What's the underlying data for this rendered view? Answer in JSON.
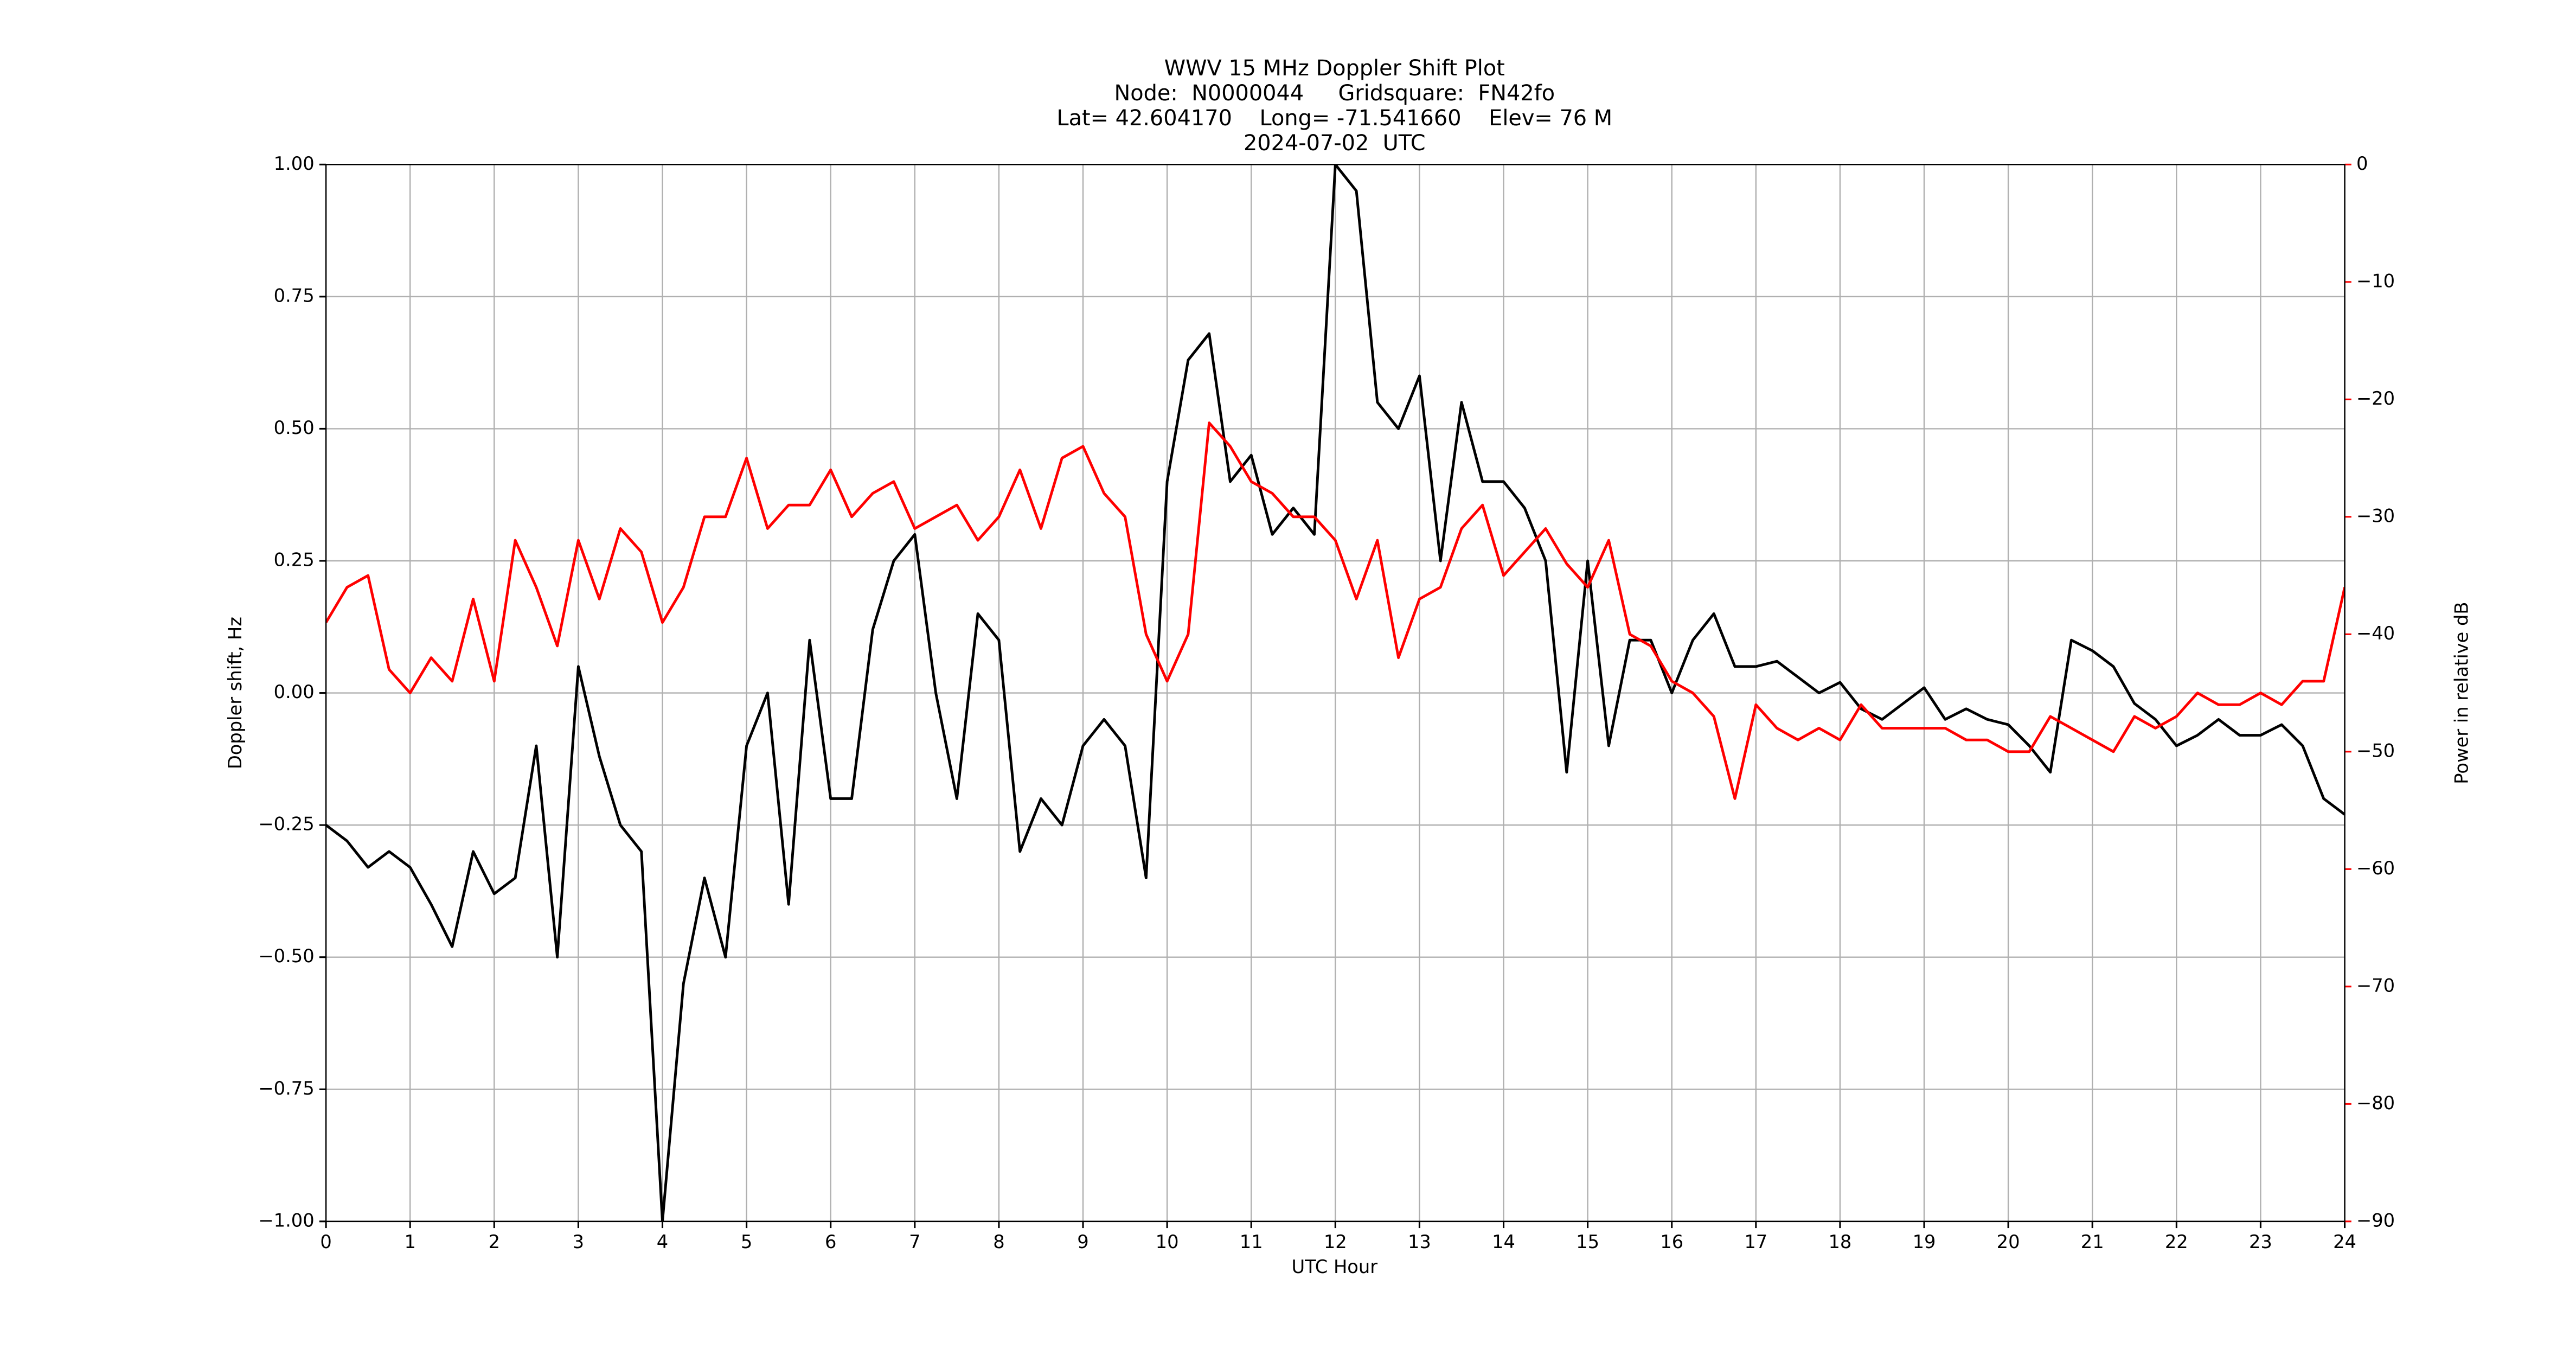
{
  "chart_data": {
    "type": "line",
    "title": "WWV 15 MHz Doppler Shift Plot",
    "subtitle": [
      "Node:  N0000044     Gridsquare:  FN42fo",
      "Lat= 42.604170    Long= -71.541660    Elev= 76 M",
      "2024-07-02  UTC"
    ],
    "x_label": "UTC Hour",
    "y_label": "Doppler shift, Hz",
    "y2_label": "Power in relative dB",
    "x": [
      0,
      0.25,
      0.5,
      0.75,
      1,
      1.25,
      1.5,
      1.75,
      2,
      2.25,
      2.5,
      2.75,
      3,
      3.25,
      3.5,
      3.75,
      4,
      4.25,
      4.5,
      4.75,
      5,
      5.25,
      5.5,
      5.75,
      6,
      6.25,
      6.5,
      6.75,
      7,
      7.25,
      7.5,
      7.75,
      8,
      8.25,
      8.5,
      8.75,
      9,
      9.25,
      9.5,
      9.75,
      10,
      10.25,
      10.5,
      10.75,
      11,
      11.25,
      11.5,
      11.75,
      12,
      12.25,
      12.5,
      12.75,
      13,
      13.25,
      13.5,
      13.75,
      14,
      14.25,
      14.5,
      14.75,
      15,
      15.25,
      15.5,
      15.75,
      16,
      16.25,
      16.5,
      16.75,
      17,
      17.25,
      17.5,
      17.75,
      18,
      18.25,
      18.5,
      18.75,
      19,
      19.25,
      19.5,
      19.75,
      20,
      20.25,
      20.5,
      20.75,
      21,
      21.25,
      21.5,
      21.75,
      22,
      22.25,
      22.5,
      22.75,
      23,
      23.25,
      23.5,
      23.75,
      24
    ],
    "series": [
      {
        "name": "Doppler shift",
        "color": "#000000",
        "axis": "y",
        "values": [
          -0.25,
          -0.28,
          -0.33,
          -0.3,
          -0.33,
          -0.4,
          -0.48,
          -0.3,
          -0.38,
          -0.35,
          -0.1,
          -0.5,
          0.05,
          -0.12,
          -0.25,
          -0.3,
          -1.0,
          -0.55,
          -0.35,
          -0.5,
          -0.1,
          0.0,
          -0.4,
          0.1,
          -0.2,
          -0.2,
          0.12,
          0.25,
          0.3,
          0.0,
          -0.2,
          0.15,
          0.1,
          -0.3,
          -0.2,
          -0.25,
          -0.1,
          -0.05,
          -0.1,
          -0.35,
          0.4,
          0.63,
          0.68,
          0.4,
          0.45,
          0.3,
          0.35,
          0.3,
          1.0,
          0.95,
          0.55,
          0.5,
          0.6,
          0.25,
          0.55,
          0.4,
          0.4,
          0.35,
          0.25,
          -0.15,
          0.25,
          -0.1,
          0.1,
          0.1,
          0.0,
          0.1,
          0.15,
          0.05,
          0.05,
          0.06,
          0.03,
          0.0,
          0.02,
          -0.03,
          -0.05,
          -0.02,
          0.01,
          -0.05,
          -0.03,
          -0.05,
          -0.06,
          -0.1,
          -0.15,
          0.1,
          0.08,
          0.05,
          -0.02,
          -0.05,
          -0.1,
          -0.08,
          -0.05,
          -0.08,
          -0.08,
          -0.06,
          -0.1,
          -0.2,
          -0.23
        ]
      },
      {
        "name": "Power",
        "color": "#ff0000",
        "axis": "y2",
        "values": [
          -39,
          -36,
          -35,
          -43,
          -45,
          -42,
          -44,
          -37,
          -44,
          -32,
          -36,
          -41,
          -32,
          -37,
          -31,
          -33,
          -39,
          -36,
          -30,
          -30,
          -25,
          -31,
          -29,
          -29,
          -26,
          -30,
          -28,
          -27,
          -31,
          -30,
          -29,
          -32,
          -30,
          -26,
          -31,
          -25,
          -24,
          -28,
          -30,
          -40,
          -44,
          -40,
          -22,
          -24,
          -27,
          -28,
          -30,
          -30,
          -32,
          -37,
          -32,
          -42,
          -37,
          -36,
          -31,
          -29,
          -35,
          -33,
          -31,
          -34,
          -36,
          -32,
          -40,
          -41,
          -44,
          -45,
          -47,
          -54,
          -46,
          -48,
          -49,
          -48,
          -49,
          -46,
          -48,
          -48,
          -48,
          -48,
          -49,
          -49,
          -50,
          -50,
          -47,
          -48,
          -49,
          -50,
          -47,
          -48,
          -47,
          -45,
          -46,
          -46,
          -45,
          -46,
          -44,
          -44,
          -36
        ]
      }
    ],
    "xlim": [
      0,
      24
    ],
    "xticks": [
      0,
      1,
      2,
      3,
      4,
      5,
      6,
      7,
      8,
      9,
      10,
      11,
      12,
      13,
      14,
      15,
      16,
      17,
      18,
      19,
      20,
      21,
      22,
      23,
      24
    ],
    "ylim": [
      -1,
      1
    ],
    "yticks": [
      {
        "value": -1,
        "label": "−1.00"
      },
      {
        "value": -0.75,
        "label": "−0.75"
      },
      {
        "value": -0.5,
        "label": "−0.50"
      },
      {
        "value": -0.25,
        "label": "−0.25"
      },
      {
        "value": 0,
        "label": "0.00"
      },
      {
        "value": 0.25,
        "label": "0.25"
      },
      {
        "value": 0.5,
        "label": "0.50"
      },
      {
        "value": 0.75,
        "label": "0.75"
      },
      {
        "value": 1,
        "label": "1.00"
      }
    ],
    "y2lim": [
      -90,
      0
    ],
    "y2ticks": [
      {
        "value": -90,
        "label": "−90"
      },
      {
        "value": -80,
        "label": "−80"
      },
      {
        "value": -70,
        "label": "−70"
      },
      {
        "value": -60,
        "label": "−60"
      },
      {
        "value": -50,
        "label": "−50"
      },
      {
        "value": -40,
        "label": "−40"
      },
      {
        "value": -30,
        "label": "−30"
      },
      {
        "value": -20,
        "label": "−20"
      },
      {
        "value": -10,
        "label": "−10"
      },
      0
    ],
    "grid": true
  }
}
